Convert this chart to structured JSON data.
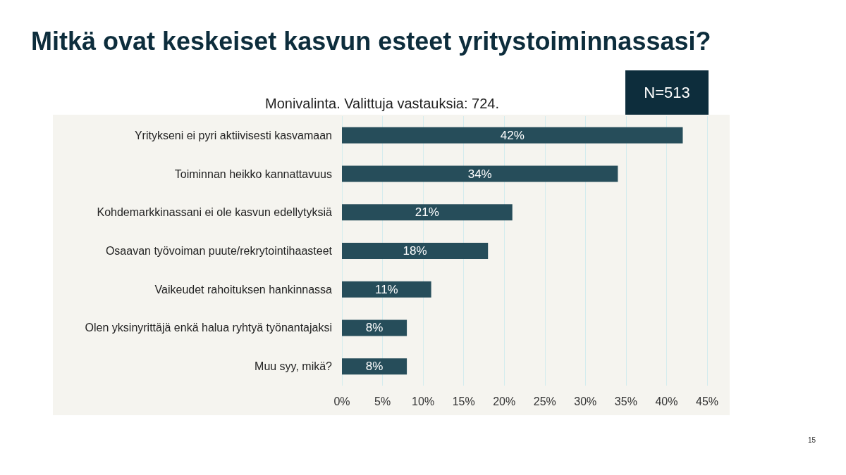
{
  "chart_data": {
    "type": "bar",
    "orientation": "horizontal",
    "title": "Mitkä ovat keskeiset kasvun esteet yritystoiminnassasi?",
    "subtitle": "Monivalinta. Valittuja vastauksia: 724.",
    "categories": [
      "Yritykseni ei pyri aktiivisesti kasvamaan",
      "Toiminnan heikko kannattavuus",
      "Kohdemarkkinassani ei ole kasvun edellytyksiä",
      "Osaavan työvoiman puute/rekrytointihaasteet",
      "Vaikeudet rahoituksen hankinnassa",
      "Olen yksinyrittäjä enkä halua ryhtyä työnantajaksi",
      "Muu syy, mikä?"
    ],
    "values": [
      42,
      34,
      21,
      18,
      11,
      8,
      8
    ],
    "value_labels": [
      "42%",
      "34%",
      "21%",
      "18%",
      "11%",
      "8%",
      "8%"
    ],
    "color": "#264d5a",
    "xlim": [
      0,
      45
    ],
    "xticks": [
      {
        "value": 0,
        "label": "0%"
      },
      {
        "value": 5,
        "label": "5%"
      },
      {
        "value": 10,
        "label": "10%"
      },
      {
        "value": 15,
        "label": "15%"
      },
      {
        "value": 20,
        "label": "20%"
      },
      {
        "value": 25,
        "label": "25%"
      },
      {
        "value": 30,
        "label": "30%"
      },
      {
        "value": 35,
        "label": "35%"
      },
      {
        "value": 40,
        "label": "40%"
      },
      {
        "value": 45,
        "label": "45%"
      }
    ],
    "grid": "x",
    "annotations": [
      "N=513",
      "15"
    ]
  }
}
